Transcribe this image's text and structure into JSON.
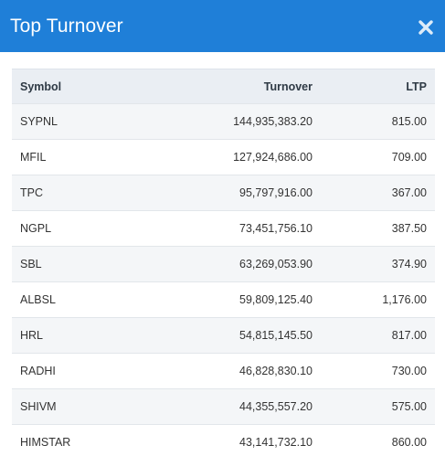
{
  "modal": {
    "title": "Top Turnover",
    "close_icon": "close-icon"
  },
  "table": {
    "headers": {
      "symbol": "Symbol",
      "turnover": "Turnover",
      "ltp": "LTP"
    },
    "rows": [
      {
        "symbol": "SYPNL",
        "turnover": "144,935,383.20",
        "ltp": "815.00"
      },
      {
        "symbol": "MFIL",
        "turnover": "127,924,686.00",
        "ltp": "709.00"
      },
      {
        "symbol": "TPC",
        "turnover": "95,797,916.00",
        "ltp": "367.00"
      },
      {
        "symbol": "NGPL",
        "turnover": "73,451,756.10",
        "ltp": "387.50"
      },
      {
        "symbol": "SBL",
        "turnover": "63,269,053.90",
        "ltp": "374.90"
      },
      {
        "symbol": "ALBSL",
        "turnover": "59,809,125.40",
        "ltp": "1,176.00"
      },
      {
        "symbol": "HRL",
        "turnover": "54,815,145.50",
        "ltp": "817.00"
      },
      {
        "symbol": "RADHI",
        "turnover": "46,828,830.10",
        "ltp": "730.00"
      },
      {
        "symbol": "SHIVM",
        "turnover": "44,355,557.20",
        "ltp": "575.00"
      },
      {
        "symbol": "HIMSTAR",
        "turnover": "43,141,732.10",
        "ltp": "860.00"
      }
    ]
  },
  "colors": {
    "header_bg": "#1f7fd8",
    "table_head_bg": "#eaeef3",
    "row_stripe": "#f4f6f8"
  }
}
